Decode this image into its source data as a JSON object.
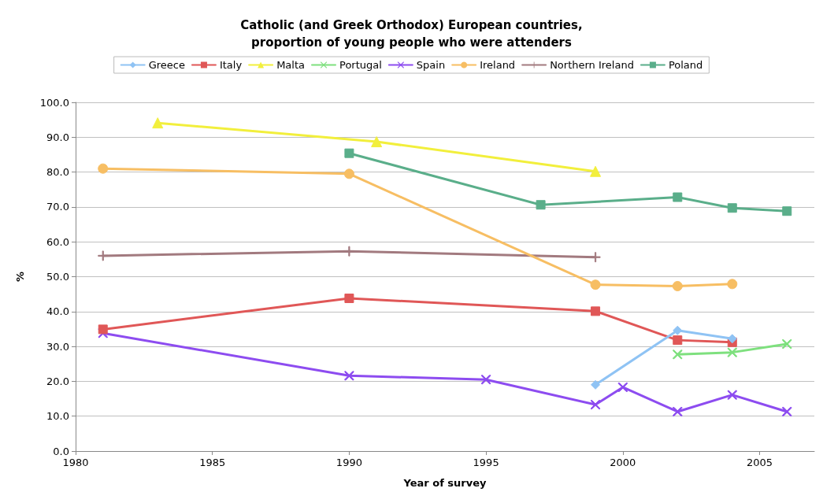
{
  "chart_data": {
    "type": "line",
    "title": "Catholic (and Greek Orthodox) European countries,\nproportion of young people who were attenders",
    "xlabel": "Year of survey",
    "ylabel": "%",
    "xlim": [
      1980,
      2007
    ],
    "xticks": [
      1980,
      1985,
      1990,
      1995,
      2000,
      2005
    ],
    "ylim": [
      0,
      100
    ],
    "yticks": [
      {
        "value": 0,
        "label": "0.0"
      },
      {
        "value": 10,
        "label": "10.0"
      },
      {
        "value": 20,
        "label": "20.0"
      },
      {
        "value": 30,
        "label": "30.0"
      },
      {
        "value": 40,
        "label": "40.0"
      },
      {
        "value": 50,
        "label": "50.0"
      },
      {
        "value": 60,
        "label": "60.0"
      },
      {
        "value": 70,
        "label": "70.0"
      },
      {
        "value": 80,
        "label": "80.0"
      },
      {
        "value": 90,
        "label": "90.0"
      },
      {
        "value": 100,
        "label": "100.0"
      }
    ],
    "grid": "y",
    "legend": "top",
    "line_style": "solid",
    "series": [
      {
        "name": "Greece",
        "color": "#8fc3f4",
        "marker": "diamond",
        "x": [
          1999,
          2002,
          2004
        ],
        "values": [
          19.0,
          34.6,
          32.2
        ]
      },
      {
        "name": "Italy",
        "color": "#e05757",
        "marker": "square",
        "x": [
          1981,
          1990,
          1999,
          2002,
          2004
        ],
        "values": [
          34.9,
          43.8,
          40.1,
          31.8,
          31.2
        ]
      },
      {
        "name": "Malta",
        "color": "#f2ef3c",
        "marker": "triangle",
        "x": [
          1983,
          1991,
          1999
        ],
        "values": [
          94.1,
          88.7,
          80.2
        ]
      },
      {
        "name": "Portugal",
        "color": "#7ee07e",
        "marker": "cross",
        "x": [
          2002,
          2004,
          2006
        ],
        "values": [
          27.7,
          28.3,
          30.7
        ]
      },
      {
        "name": "Spain",
        "color": "#8d4cf0",
        "marker": "cross",
        "x": [
          1981,
          1990,
          1995,
          1999,
          2000,
          2002,
          2004,
          2006
        ],
        "values": [
          33.8,
          21.6,
          20.5,
          13.3,
          18.3,
          11.3,
          16.1,
          11.3
        ]
      },
      {
        "name": "Ireland",
        "color": "#f7be63",
        "marker": "circle",
        "x": [
          1981,
          1990,
          1999,
          2002,
          2004
        ],
        "values": [
          81.0,
          79.5,
          47.7,
          47.3,
          47.9
        ]
      },
      {
        "name": "Northern Ireland",
        "color": "#a27a7f",
        "marker": "plus",
        "x": [
          1981,
          1990,
          1999
        ],
        "values": [
          56.0,
          57.3,
          55.6
        ]
      },
      {
        "name": "Poland",
        "color": "#5aae8a",
        "marker": "square",
        "x": [
          1990,
          1997,
          2002,
          2004,
          2006
        ],
        "values": [
          85.4,
          70.6,
          72.8,
          69.7,
          68.8
        ]
      }
    ]
  }
}
